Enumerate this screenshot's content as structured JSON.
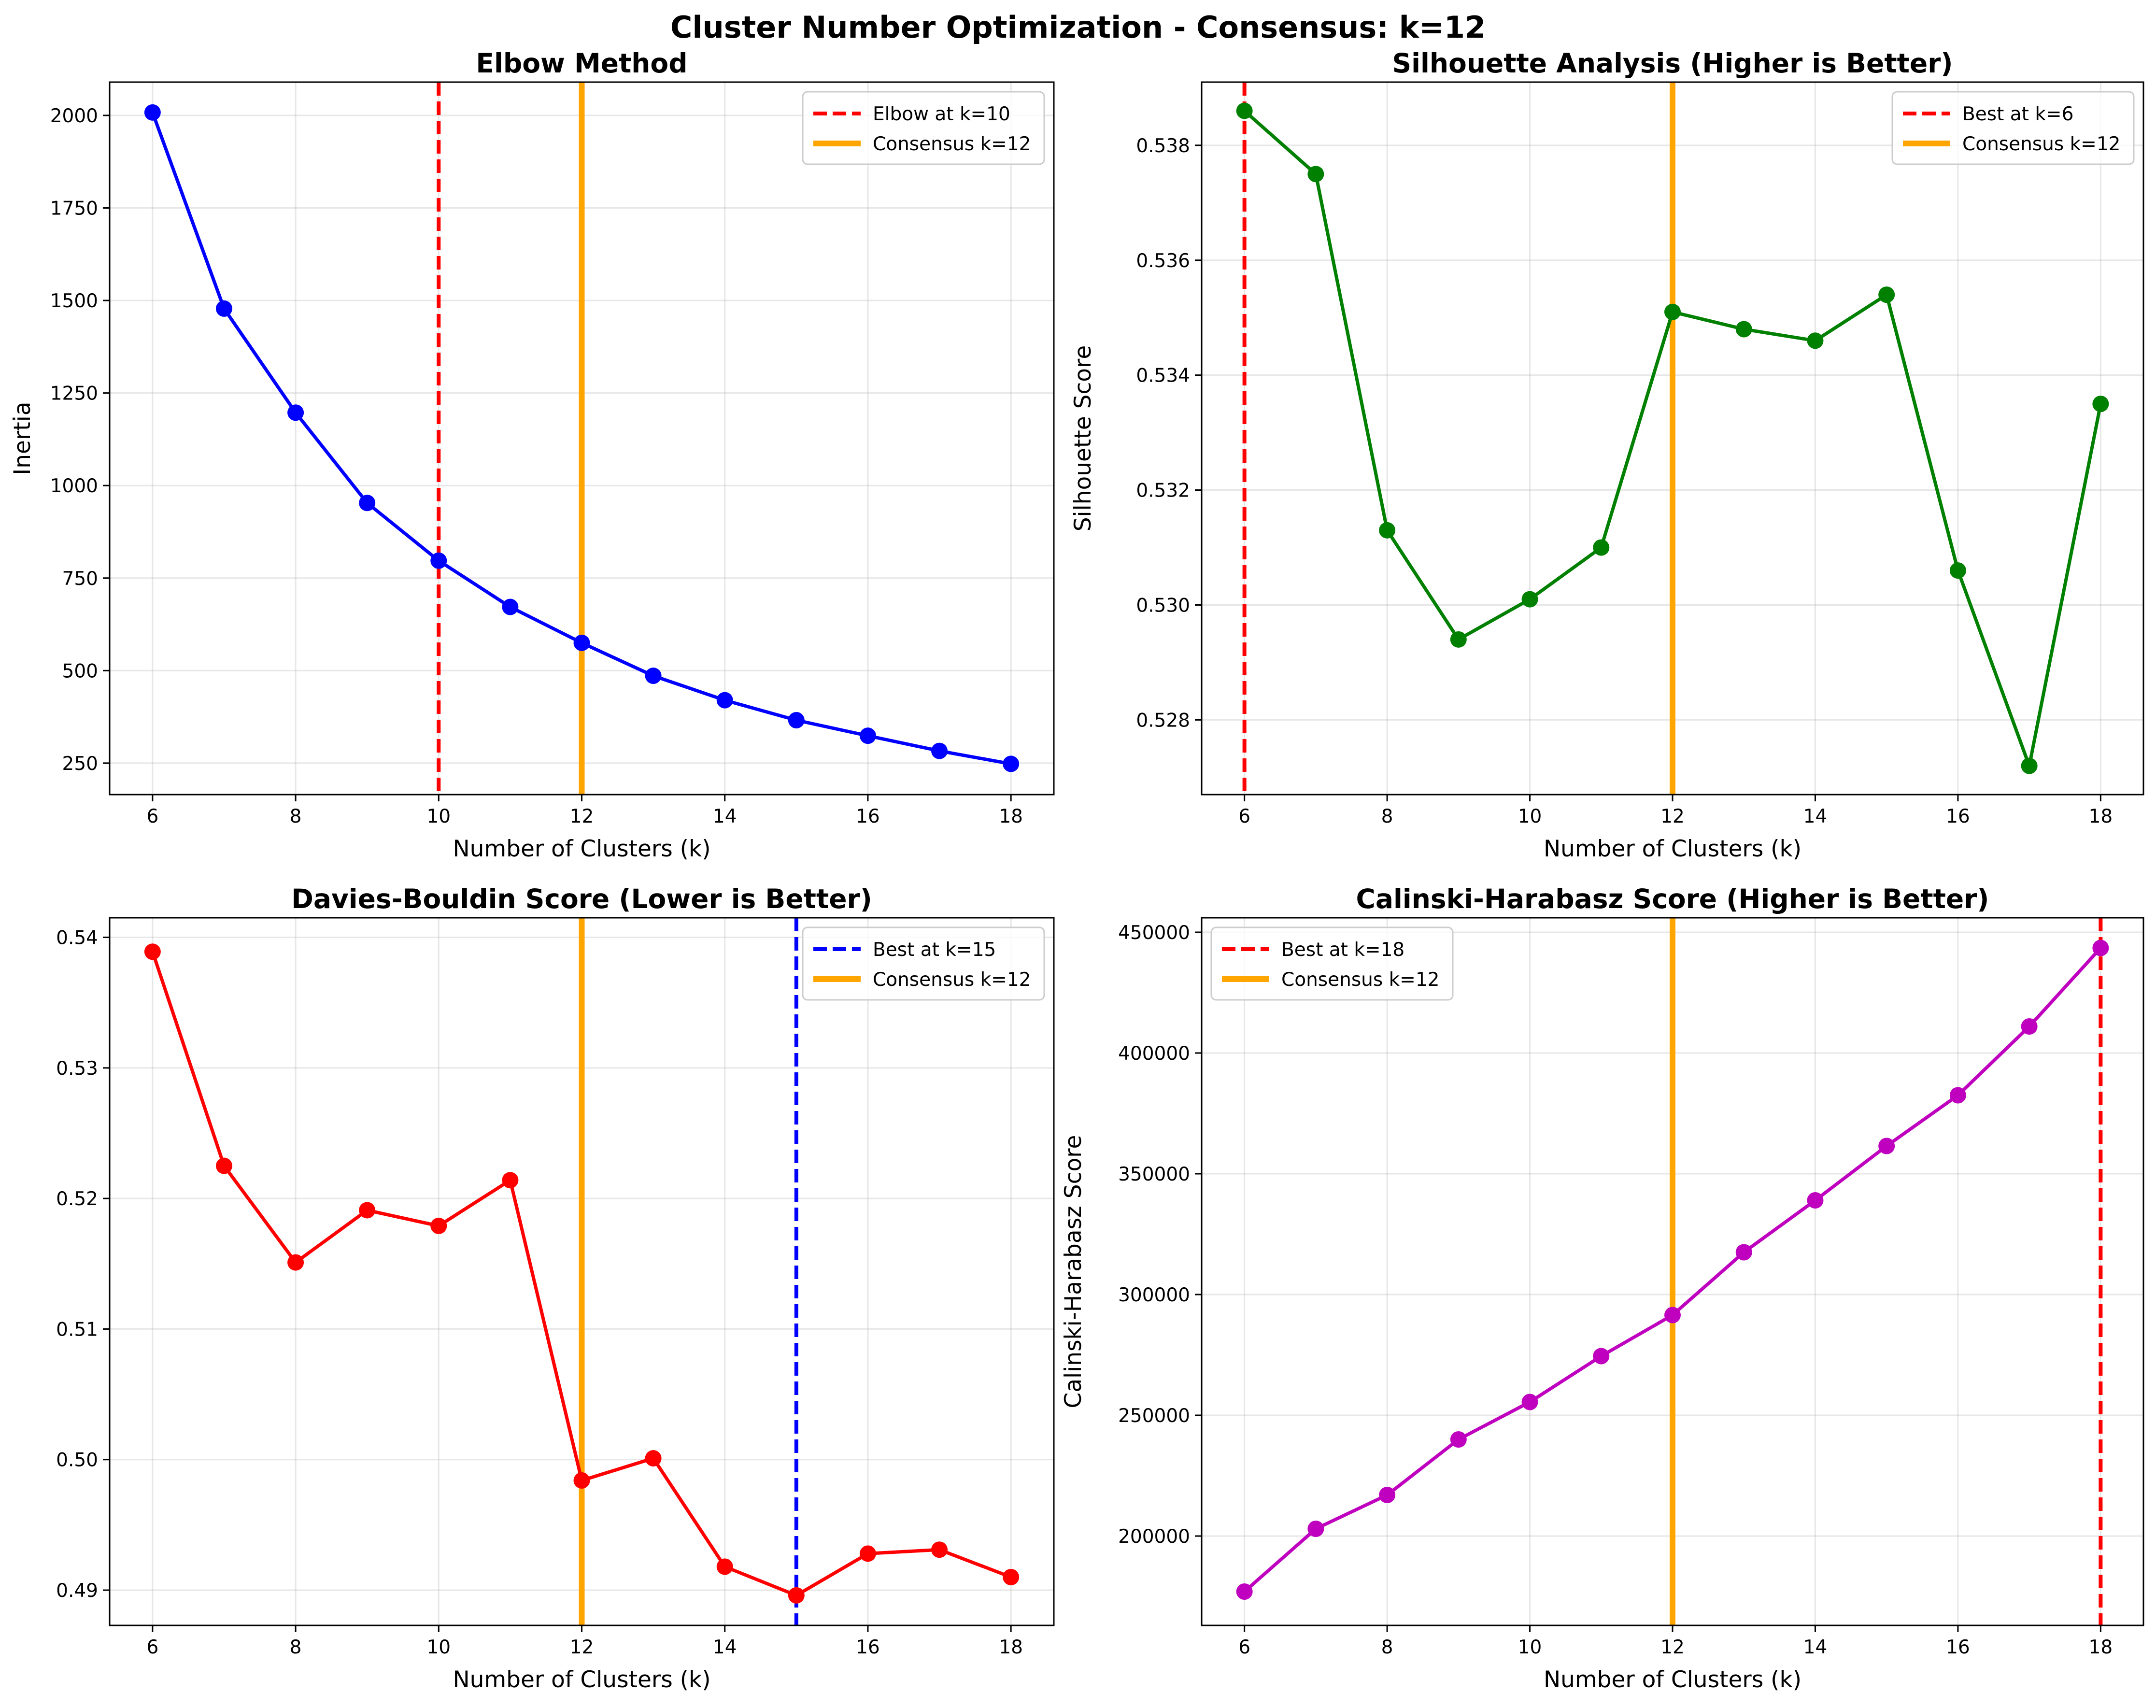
{
  "suptitle": "Cluster Number Optimization - Consensus: k=12",
  "chart_data": [
    {
      "type": "line",
      "title": "Elbow Method",
      "xlabel": "Number of Clusters (k)",
      "ylabel": "Inertia",
      "xlim": [
        5.4,
        18.6
      ],
      "ylim": [
        165,
        2090
      ],
      "xticks": [
        6,
        8,
        10,
        12,
        14,
        16,
        18
      ],
      "yticks": [
        250,
        500,
        750,
        1000,
        1250,
        1500,
        1750,
        2000
      ],
      "x": [
        6,
        7,
        8,
        9,
        10,
        11,
        12,
        13,
        14,
        15,
        16,
        17,
        18
      ],
      "series": [
        {
          "values": [
            2008,
            1478,
            1197,
            953,
            797,
            672,
            575,
            486,
            420,
            366,
            324,
            283,
            248
          ],
          "color": "#0000ff"
        }
      ],
      "vlines": [
        {
          "x": 10,
          "color": "#ff0000",
          "style": "dashed",
          "label": "Elbow at k=10"
        },
        {
          "x": 12,
          "color": "#ffa500",
          "style": "solid",
          "label": "Consensus k=12"
        }
      ],
      "legend": "upper right",
      "grid": true
    },
    {
      "type": "line",
      "title": "Silhouette Analysis (Higher is Better)",
      "xlabel": "Number of Clusters (k)",
      "ylabel": "Silhouette Score",
      "xlim": [
        5.4,
        18.6
      ],
      "ylim": [
        0.5267,
        0.5391
      ],
      "xticks": [
        6,
        8,
        10,
        12,
        14,
        16,
        18
      ],
      "yticks": [
        0.528,
        0.53,
        0.532,
        0.534,
        0.536,
        0.538
      ],
      "ytick_decimals": 3,
      "x": [
        6,
        7,
        8,
        9,
        10,
        11,
        12,
        13,
        14,
        15,
        16,
        17,
        18
      ],
      "series": [
        {
          "values": [
            0.5386,
            0.5375,
            0.5313,
            0.5294,
            0.5301,
            0.531,
            0.5351,
            0.5348,
            0.5346,
            0.5354,
            0.5306,
            0.5272,
            0.5335
          ],
          "color": "#008000"
        }
      ],
      "vlines": [
        {
          "x": 6,
          "color": "#ff0000",
          "style": "dashed",
          "label": "Best at k=6"
        },
        {
          "x": 12,
          "color": "#ffa500",
          "style": "solid",
          "label": "Consensus k=12"
        }
      ],
      "legend": "upper right",
      "grid": true
    },
    {
      "type": "line",
      "title": "Davies-Bouldin Score (Lower is Better)",
      "xlabel": "Number of Clusters (k)",
      "ylabel": "Davies-Bouldin Score",
      "xlim": [
        5.4,
        18.6
      ],
      "ylim": [
        0.4873,
        0.5415
      ],
      "xticks": [
        6,
        8,
        10,
        12,
        14,
        16,
        18
      ],
      "yticks": [
        0.49,
        0.5,
        0.51,
        0.52,
        0.53,
        0.54
      ],
      "ytick_decimals": 2,
      "x": [
        6,
        7,
        8,
        9,
        10,
        11,
        12,
        13,
        14,
        15,
        16,
        17,
        18
      ],
      "series": [
        {
          "values": [
            0.5389,
            0.5225,
            0.5151,
            0.5191,
            0.5179,
            0.5214,
            0.4984,
            0.5001,
            0.4918,
            0.4896,
            0.4928,
            0.4931,
            0.491
          ],
          "color": "#ff0000"
        }
      ],
      "vlines": [
        {
          "x": 15,
          "color": "#0000ff",
          "style": "dashed",
          "label": "Best at k=15"
        },
        {
          "x": 12,
          "color": "#ffa500",
          "style": "solid",
          "label": "Consensus k=12"
        }
      ],
      "legend": "upper right",
      "grid": true
    },
    {
      "type": "line",
      "title": "Calinski-Harabasz Score (Higher is Better)",
      "xlabel": "Number of Clusters (k)",
      "ylabel": "Calinski-Harabasz Score",
      "xlim": [
        5.4,
        18.6
      ],
      "ylim": [
        163000,
        456000
      ],
      "xticks": [
        6,
        8,
        10,
        12,
        14,
        16,
        18
      ],
      "yticks": [
        200000,
        250000,
        300000,
        350000,
        400000,
        450000
      ],
      "ytick_decimals": 0,
      "x": [
        6,
        7,
        8,
        9,
        10,
        11,
        12,
        13,
        14,
        15,
        16,
        17,
        18
      ],
      "series": [
        {
          "values": [
            177000,
            203000,
            217000,
            240000,
            255500,
            274500,
            291500,
            317500,
            339000,
            361500,
            382500,
            411000,
            443500
          ],
          "color": "#bf00bf"
        }
      ],
      "vlines": [
        {
          "x": 18,
          "color": "#ff0000",
          "style": "dashed",
          "label": "Best at k=18"
        },
        {
          "x": 12,
          "color": "#ffa500",
          "style": "solid",
          "label": "Consensus k=12"
        }
      ],
      "legend": "upper left",
      "grid": true
    }
  ]
}
